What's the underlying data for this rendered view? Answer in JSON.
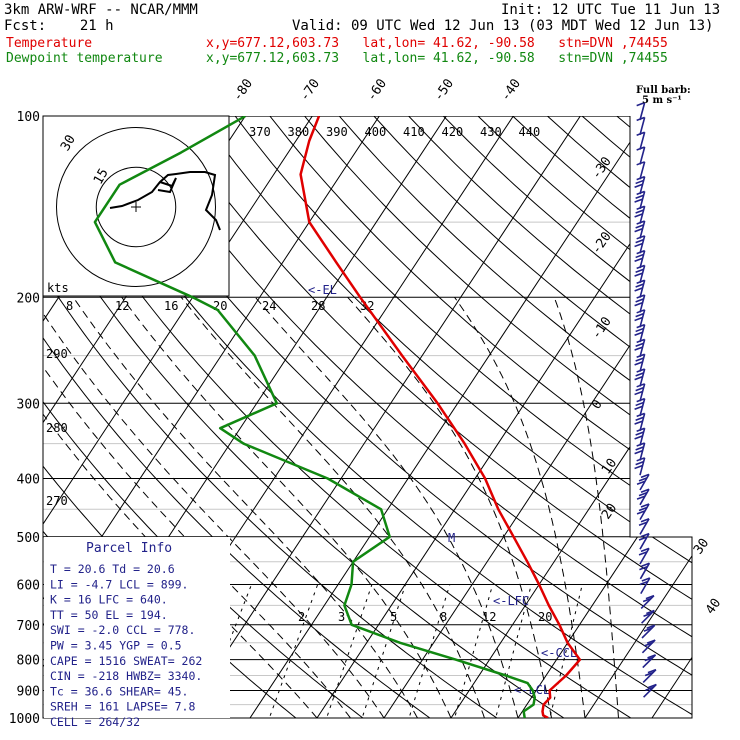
{
  "header": {
    "model": "3km ARW-WRF -- NCAR/MMM",
    "init": "Init: 12 UTC Tue 11 Jun 13",
    "fcst": "Fcst:    21 h",
    "valid": "Valid: 09 UTC Wed 12 Jun 13 (03 MDT Wed 12 Jun 13)",
    "temp_legend": "Temperature",
    "dew_legend": "Dewpoint temperature",
    "location": "x,y=677.12,603.73   lat,lon= 41.62, -90.58   stn=DVN ,74455"
  },
  "wind_key": {
    "title": "Full barb:",
    "value": "5 m s⁻¹"
  },
  "hodograph": {
    "units": "kts",
    "ring_labels": [
      "30",
      "15"
    ]
  },
  "levels": {
    "pressure_labels": [
      "100",
      "200",
      "300",
      "400",
      "500",
      "600",
      "700",
      "800",
      "900",
      "1000"
    ],
    "isotherm_labels_top": [
      "-80",
      "-70",
      "-60",
      "-50",
      "-40"
    ],
    "isotherm_labels_right": [
      "-30",
      "-20",
      "-10",
      "0",
      "10",
      "20",
      "30",
      "40"
    ],
    "theta_labels_top": [
      "370",
      "380",
      "390",
      "400",
      "410",
      "420",
      "430",
      "440"
    ],
    "theta_labels_left": [
      "290",
      "280",
      "270"
    ],
    "mixing_ratio_labels": [
      "2",
      "3",
      "5",
      "8",
      "12",
      "20"
    ],
    "thetae_labels": [
      "8",
      "12",
      "16",
      "20",
      "24",
      "28",
      "32"
    ]
  },
  "annotations": {
    "el": "<-EL",
    "lfc": "<-LFC",
    "ccl": "<-CCL",
    "lcl": "<-LCL",
    "m": "M"
  },
  "parcel": {
    "title": "Parcel Info",
    "rows": [
      "T   =   20.6  Td =  20.6",
      "LI  =   -4.7  LCL =  899.",
      "K   =     16  LFC =  640.",
      "TT  =     50  EL  =  194.",
      "SWI =   -2.0  CCL =  778.",
      "PW  =   3.45  YGP =   0.5",
      "CAPE =  1516  SWEAT=  262",
      "CIN =   -218  HWBZ= 3340.",
      "Tc  =   36.6  SHEAR=  45.",
      "SREH =   161  LAPSE=  7.8",
      "CELL = 264/32"
    ]
  },
  "chart_data": {
    "type": "line",
    "title": "",
    "xlabel": "",
    "ylabel": "",
    "y_scale": "log-pressure",
    "ylim": [
      1000,
      100
    ],
    "series": [
      {
        "name": "Temperature",
        "color": "#e00000",
        "points": [
          [
            1000,
            24.5
          ],
          [
            990,
            23.5
          ],
          [
            975,
            23
          ],
          [
            950,
            22.5
          ],
          [
            925,
            22.8
          ],
          [
            900,
            22
          ],
          [
            850,
            23
          ],
          [
            800,
            23.5
          ],
          [
            750,
            20
          ],
          [
            700,
            17
          ],
          [
            650,
            13.5
          ],
          [
            600,
            10
          ],
          [
            550,
            6
          ],
          [
            500,
            1.5
          ],
          [
            450,
            -3.5
          ],
          [
            400,
            -8.5
          ],
          [
            350,
            -15
          ],
          [
            300,
            -23
          ],
          [
            250,
            -33
          ],
          [
            200,
            -45
          ],
          [
            175,
            -52
          ],
          [
            150,
            -60
          ],
          [
            125,
            -66
          ],
          [
            110,
            -68
          ],
          [
            100,
            -69
          ]
        ]
      },
      {
        "name": "Dewpoint temperature",
        "color": "#118811",
        "points": [
          [
            1000,
            21
          ],
          [
            975,
            20.2
          ],
          [
            950,
            21
          ],
          [
            925,
            20.5
          ],
          [
            900,
            19.5
          ],
          [
            875,
            18
          ],
          [
            850,
            14
          ],
          [
            800,
            5
          ],
          [
            750,
            -5
          ],
          [
            700,
            -14
          ],
          [
            650,
            -17
          ],
          [
            600,
            -18
          ],
          [
            550,
            -20
          ],
          [
            500,
            -17
          ],
          [
            450,
            -21
          ],
          [
            400,
            -32
          ],
          [
            350,
            -48
          ],
          [
            330,
            -53
          ],
          [
            300,
            -47
          ],
          [
            250,
            -55
          ],
          [
            210,
            -65
          ],
          [
            200,
            -70
          ],
          [
            175,
            -85
          ],
          [
            150,
            -92
          ],
          [
            130,
            -92
          ],
          [
            115,
            -86
          ],
          [
            100,
            -80
          ]
        ]
      }
    ]
  },
  "colors": {
    "temperature": "#e00000",
    "dewpoint": "#118811",
    "barb": "#22228a",
    "background": "#ffffff"
  }
}
